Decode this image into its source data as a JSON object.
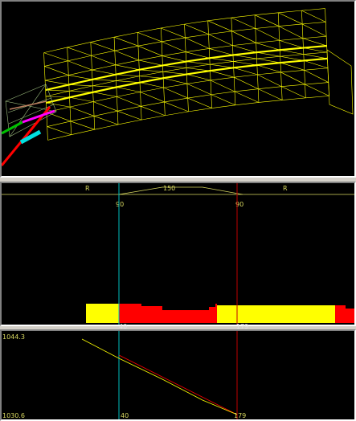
{
  "viewport_3d": {
    "mesh_color": "#ffff00",
    "axis_colors": {
      "red": "#ff0000",
      "green": "#00c000",
      "magenta": "#ff00ff",
      "cyan": "#00e0e0"
    }
  },
  "profile": {
    "top_labels": {
      "left_R": "R",
      "mid_value": "150",
      "right_R": "R"
    },
    "cursor_labels": {
      "cyan": "90",
      "red": "90"
    },
    "bottom_labels": {
      "cyan": "40",
      "red": "179"
    },
    "colors": {
      "cyan_cursor": "#00c0c0",
      "red_cursor": "#c00000",
      "fill_yellow": "#ffff00",
      "fill_red": "#ff0000"
    }
  },
  "elevation": {
    "y_max": "1044.3",
    "y_min": "1030.6",
    "cursor_labels": {
      "cyan": "40",
      "red": "179"
    }
  }
}
